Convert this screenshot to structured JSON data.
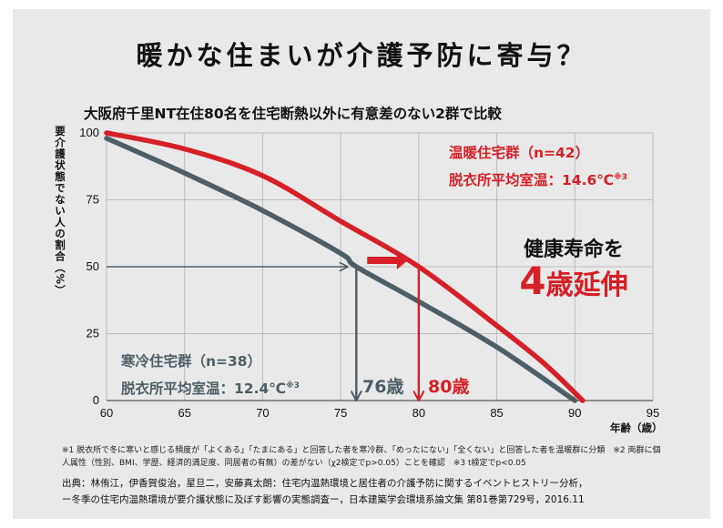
{
  "title": "暖かな住まいが介護予防に寄与？",
  "subtitle": "大阪府千里NT在住80名を住宅断熱以外に有意差のない2群で比較",
  "chart_data": {
    "type": "line",
    "xlabel": "年齢（歳）",
    "ylabel": "要介護状態でない人の割合（%）",
    "xlim": [
      60,
      95
    ],
    "ylim": [
      0,
      100
    ],
    "x_ticks": [
      "60",
      "65",
      "70",
      "75",
      "80",
      "85",
      "90",
      "95"
    ],
    "y_ticks": [
      "0",
      "25",
      "50",
      "75",
      "100"
    ],
    "series": [
      {
        "name": "温暖住宅群（n=42）",
        "color": "#d61f26",
        "x": [
          60,
          65,
          70,
          75,
          80,
          85,
          88,
          90.5
        ],
        "y": [
          100,
          94,
          84,
          67,
          50,
          28,
          14,
          0
        ]
      },
      {
        "name": "寒冷住宅群（n=38）",
        "color": "#4d5e66",
        "x": [
          60,
          65,
          70,
          75,
          76,
          80,
          85,
          90
        ],
        "y": [
          98,
          85,
          71,
          55,
          50,
          37,
          20,
          0
        ]
      }
    ],
    "annotations": {
      "cold_age_at_50": 76,
      "warm_age_at_50": 80,
      "reference_y": 50
    }
  },
  "warm": {
    "line1": "温暖住宅群（n=42）",
    "line2": "脱衣所平均室温：14.6℃",
    "note": "※3"
  },
  "cold": {
    "line1": "寒冷住宅群（n=38）",
    "line2": "脱衣所平均室温：12.4℃",
    "note": "※3"
  },
  "headline": {
    "line1": "健康寿命を",
    "number": "4",
    "line2": "歳延伸"
  },
  "age_labels": {
    "cold": "76歳",
    "warm": "80歳"
  },
  "footnotes": {
    "line1": "※1 脱衣所で冬に寒いと感じる頻度が「よくある」「たまにある」と回答した者を寒冷群、「めったにない」「全くない」と回答した者を温暖群に分類　※2 両群に個",
    "line2": "人属性（性別、BMI、学歴、経済的満足度、同居者の有無）の差がない（χ2検定でp>0.05）ことを確認　※3 t検定でp<0.05"
  },
  "source": {
    "line1": "出典：林侑江，伊香賀俊治，星旦二，安藤真太朗：住宅内温熱環境と居住者の介護予防に関するイベントヒストリー分析，",
    "line2": "ー冬季の住宅内温熱環境が要介護状態に及ぼす影響の実態調査ー，日本建築学会環境系論文集 第81巻第729号，2016.11"
  },
  "colors": {
    "warm": "#d61f26",
    "cold": "#4d5e66",
    "background": "#e9e9e9"
  }
}
